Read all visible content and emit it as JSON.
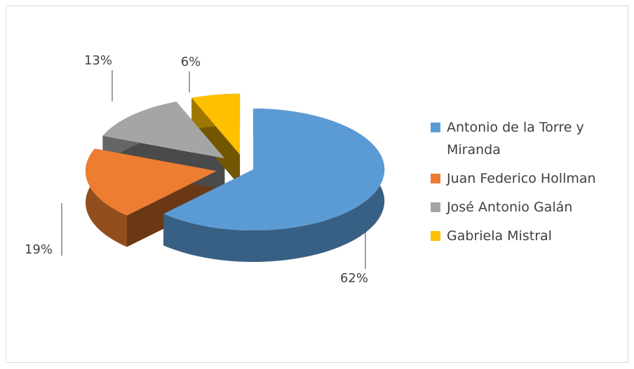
{
  "chart_data": {
    "type": "pie",
    "categories": [
      "Antonio de la Torre y Miranda",
      "Juan Federico Hollman",
      "José Antonio Galán",
      "Gabriela Mistral"
    ],
    "values": [
      62,
      19,
      13,
      6
    ],
    "value_labels": [
      "62%",
      "19%",
      "13%",
      "6%"
    ],
    "colors": [
      "#5b9bd5",
      "#ed7d31",
      "#a5a5a5",
      "#ffc000"
    ],
    "legend": "right"
  }
}
